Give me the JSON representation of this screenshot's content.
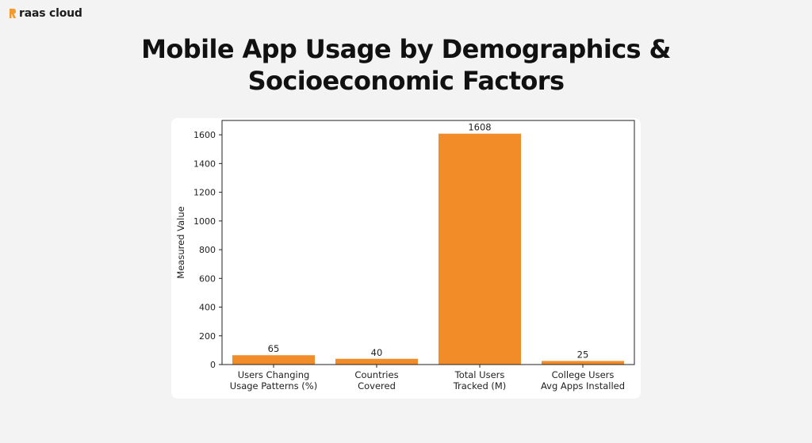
{
  "brand": {
    "name": "raas cloud",
    "accent": "#f39a2e"
  },
  "header": {
    "title_line1": "Mobile App Usage by Demographics &",
    "title_line2": "Socioeconomic Factors"
  },
  "chart_data": {
    "type": "bar",
    "categories": [
      [
        "Users Changing",
        "Usage Patterns (%)"
      ],
      [
        "Countries",
        "Covered"
      ],
      [
        "Total Users",
        "Tracked (M)"
      ],
      [
        "College Users",
        "Avg Apps Installed"
      ]
    ],
    "values": [
      65,
      40,
      1608,
      25
    ],
    "data_labels": [
      "65",
      "40",
      "1608",
      "25"
    ],
    "xlabel": "",
    "ylabel": "Measured Value",
    "ylim": [
      0,
      1700
    ],
    "yticks": [
      0,
      200,
      400,
      600,
      800,
      1000,
      1200,
      1400,
      1600
    ],
    "bar_color": "#f28c28",
    "grid": false,
    "legend": "none"
  }
}
